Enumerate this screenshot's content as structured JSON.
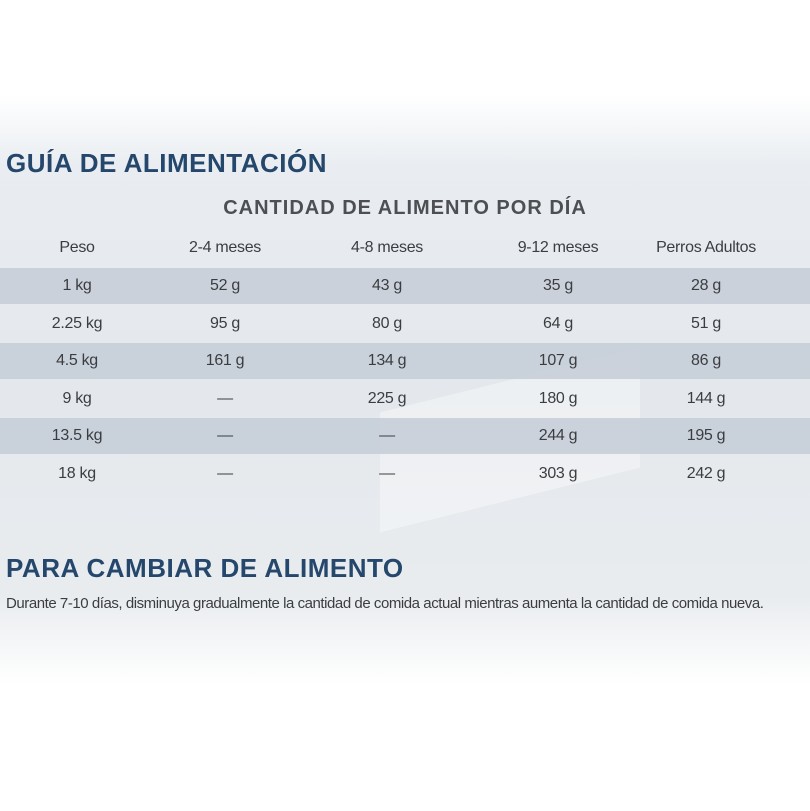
{
  "header": {
    "title": "GUÍA DE ALIMENTACIÓN"
  },
  "table": {
    "subtitle": "CANTIDAD DE ALIMENTO POR DÍA",
    "columns": [
      "Peso",
      "2-4 meses",
      "4-8 meses",
      "9-12 meses",
      "Perros Adultos"
    ],
    "rows": [
      [
        "1 kg",
        "52 g",
        "43 g",
        "35 g",
        "28 g"
      ],
      [
        "2.25 kg",
        "95 g",
        "80 g",
        "64 g",
        "51 g"
      ],
      [
        "4.5 kg",
        "161 g",
        "134 g",
        "107 g",
        "86 g"
      ],
      [
        "9 kg",
        "—",
        "225 g",
        "180 g",
        "144 g"
      ],
      [
        "13.5 kg",
        "—",
        "—",
        "244 g",
        "195 g"
      ],
      [
        "18 kg",
        "—",
        "—",
        "303 g",
        "242 g"
      ]
    ]
  },
  "section": {
    "title": "PARA CAMBIAR DE ALIMENTO",
    "text": "Durante 7-10 días, disminuya gradualmente la cantidad de comida actual mientras aumenta la cantidad de comida nueva."
  }
}
